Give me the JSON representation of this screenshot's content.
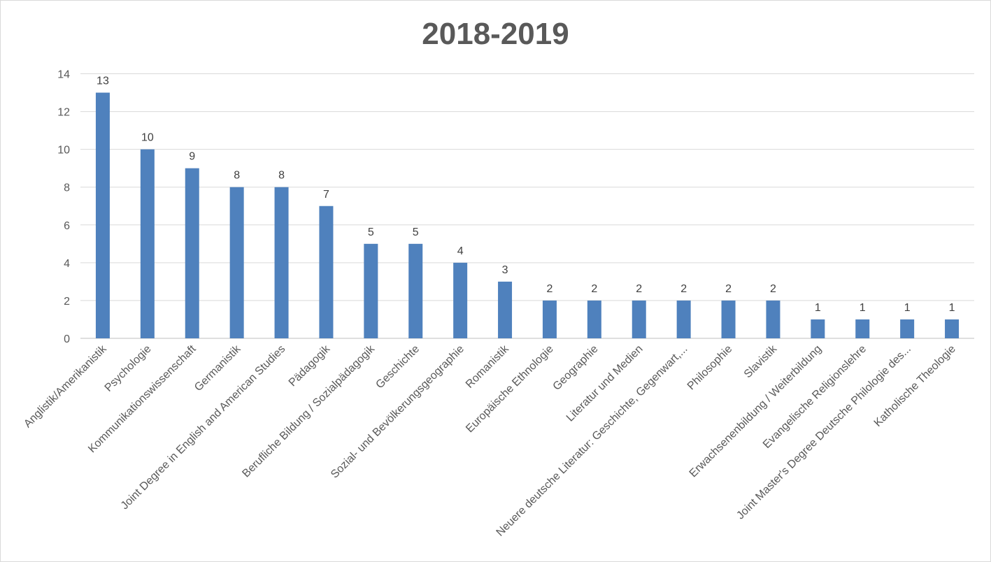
{
  "chart_data": {
    "type": "bar",
    "title": "2018-2019",
    "xlabel": "",
    "ylabel": "",
    "ylim": [
      0,
      14
    ],
    "yticks": [
      "0",
      "2",
      "4",
      "6",
      "8",
      "10",
      "12",
      "14"
    ],
    "grid": true,
    "legend": "none",
    "bar_color": "#4f81bd",
    "categories": [
      "Anglistik/Amerikanistik",
      "Psychologie",
      "Kommunikationswissenschaft",
      "Germanistik",
      "Joint Degree in English and American Studies",
      "Pädagogik",
      "Berufliche Bildung / Sozialpädagogik",
      "Geschichte",
      "Sozial- und Bevölkerungsgeographie",
      "Romanistik",
      "Europäische Ethnologie",
      "Geographie",
      "Literatur und Medien",
      "Neuere deutsche Literatur: Geschichte, Gegenwart,...",
      "Philosophie",
      "Slavistik",
      "Erwachsenenbildung / Weiterbildung",
      "Evangelische Religionslehre",
      "Joint Master's Degree Deutsche Philologie des...",
      "Katholische Theologie"
    ],
    "values": [
      13,
      10,
      9,
      8,
      8,
      7,
      5,
      5,
      4,
      3,
      2,
      2,
      2,
      2,
      2,
      2,
      1,
      1,
      1,
      1
    ]
  }
}
